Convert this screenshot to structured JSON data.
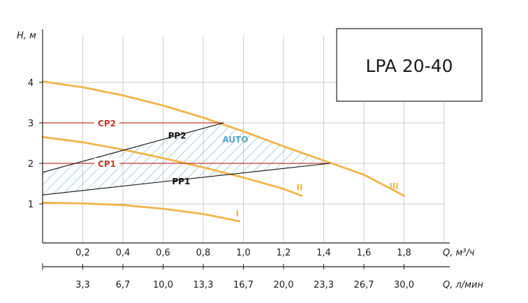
{
  "model_label": "LPA 20-40",
  "colors": {
    "pump_curve": "#f0b54a",
    "constant_pressure": "#c0392b",
    "proportional_pressure": "#111111",
    "auto_zone": "#58a8c8",
    "grid": "#cccccc",
    "axis": "#222222"
  },
  "chart_data": {
    "type": "line",
    "ylabel": "H, м",
    "xlabel": "Q, м³/ч",
    "x2label": "Q, л/мин",
    "xlim": [
      0,
      1.9
    ],
    "ylim": [
      0,
      5
    ],
    "grid": true,
    "x_ticks": [
      "0,2",
      "0,4",
      "0,6",
      "0,8",
      "1,0",
      "1,2",
      "1,4",
      "1,6",
      "1,8"
    ],
    "x_tick_values": [
      0.2,
      0.4,
      0.6,
      0.8,
      1.0,
      1.2,
      1.4,
      1.6,
      1.8
    ],
    "x2_ticks": [
      "3,3",
      "6,7",
      "10,0",
      "13,3",
      "16,7",
      "20,0",
      "23,3",
      "26,7",
      "30,0"
    ],
    "y_ticks": [
      "1",
      "2",
      "3",
      "4"
    ],
    "y_tick_values": [
      1,
      2,
      3,
      4
    ],
    "series": [
      {
        "name": "I",
        "kind": "pump_curve",
        "points": [
          [
            0,
            1.03
          ],
          [
            0.2,
            1.01
          ],
          [
            0.4,
            0.97
          ],
          [
            0.6,
            0.88
          ],
          [
            0.8,
            0.75
          ],
          [
            0.98,
            0.57
          ]
        ]
      },
      {
        "name": "II",
        "kind": "pump_curve",
        "points": [
          [
            0,
            2.65
          ],
          [
            0.2,
            2.52
          ],
          [
            0.4,
            2.34
          ],
          [
            0.6,
            2.13
          ],
          [
            0.8,
            1.9
          ],
          [
            1.0,
            1.65
          ],
          [
            1.2,
            1.37
          ],
          [
            1.29,
            1.2
          ]
        ]
      },
      {
        "name": "III",
        "kind": "pump_curve",
        "points": [
          [
            0,
            4.02
          ],
          [
            0.2,
            3.88
          ],
          [
            0.4,
            3.68
          ],
          [
            0.6,
            3.43
          ],
          [
            0.8,
            3.13
          ],
          [
            1.0,
            2.79
          ],
          [
            1.2,
            2.42
          ],
          [
            1.4,
            2.07
          ],
          [
            1.6,
            1.72
          ],
          [
            1.8,
            1.2
          ]
        ]
      },
      {
        "name": "CP2",
        "kind": "constant_pressure",
        "points": [
          [
            0,
            3.0
          ],
          [
            0.9,
            3.0
          ]
        ]
      },
      {
        "name": "CP1",
        "kind": "constant_pressure",
        "points": [
          [
            0,
            2.0
          ],
          [
            1.43,
            2.0
          ]
        ]
      },
      {
        "name": "PP2",
        "kind": "proportional_pressure",
        "points": [
          [
            0,
            1.78
          ],
          [
            0.9,
            3.0
          ]
        ]
      },
      {
        "name": "PP1",
        "kind": "proportional_pressure",
        "points": [
          [
            0,
            1.22
          ],
          [
            1.43,
            2.0
          ]
        ]
      }
    ],
    "zones": [
      {
        "name": "AUTO",
        "polygon": [
          [
            0,
            1.78
          ],
          [
            0.9,
            3.0
          ],
          [
            1.0,
            2.79
          ],
          [
            1.2,
            2.42
          ],
          [
            1.43,
            2.0
          ],
          [
            0,
            1.22
          ]
        ]
      }
    ]
  }
}
